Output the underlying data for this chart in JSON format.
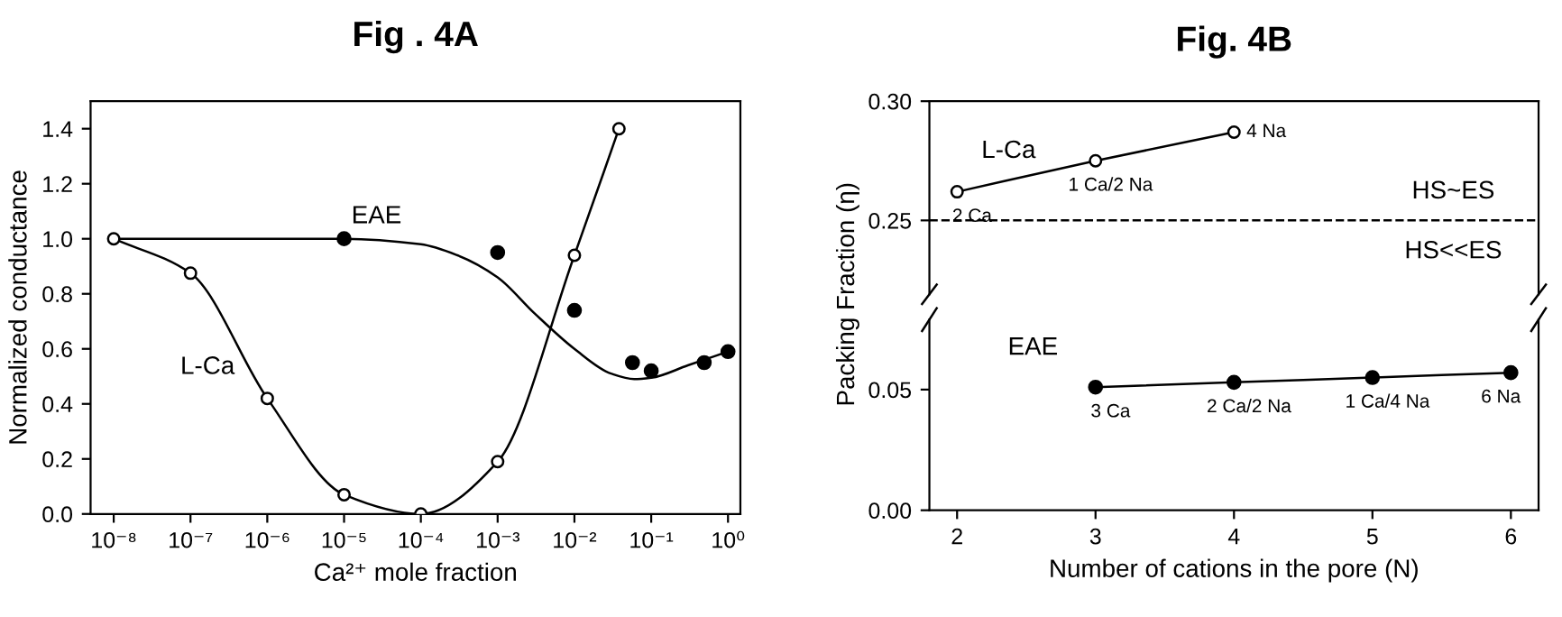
{
  "chart_data": [
    {
      "type": "line",
      "title": "Fig . 4A",
      "xlabel": "Ca²⁺ mole fraction",
      "ylabel": "Normalized conductance",
      "log": "x",
      "xlim": [
        5e-09,
        1.45
      ],
      "ylim": [
        0,
        1.5
      ],
      "xticks": [
        {
          "value": 1e-08,
          "label": "10⁻⁸"
        },
        {
          "value": 1e-07,
          "label": "10⁻⁷"
        },
        {
          "value": 1e-06,
          "label": "10⁻⁶"
        },
        {
          "value": 1e-05,
          "label": "10⁻⁵"
        },
        {
          "value": 0.0001,
          "label": "10⁻⁴"
        },
        {
          "value": 0.001,
          "label": "10⁻³"
        },
        {
          "value": 0.01,
          "label": "10⁻²"
        },
        {
          "value": 0.1,
          "label": "10⁻¹"
        },
        {
          "value": 1,
          "label": "10⁰"
        }
      ],
      "yticks": [
        {
          "value": 0,
          "label": "0.0"
        },
        {
          "value": 0.2,
          "label": "0.2"
        },
        {
          "value": 0.4,
          "label": "0.4"
        },
        {
          "value": 0.6,
          "label": "0.6"
        },
        {
          "value": 0.8,
          "label": "0.8"
        },
        {
          "value": 1,
          "label": "1.0"
        },
        {
          "value": 1.2,
          "label": "1.2"
        },
        {
          "value": 1.4,
          "label": "1.4"
        }
      ],
      "series": [
        {
          "marker": "circle",
          "color": "#000000",
          "x": [
            1e-08,
            1e-07,
            1e-06,
            1e-05,
            0.0001,
            0.001,
            0.01,
            0.038
          ],
          "values": [
            1.0,
            0.875,
            0.42,
            0.07,
            0.0,
            0.19,
            0.94,
            1.4
          ]
        },
        {
          "type": "scatter",
          "marker": "circle",
          "color": "#000000",
          "x": [
            1e-05,
            0.001,
            0.01,
            0.057,
            0.1,
            0.49,
            1
          ],
          "values": [
            1.0,
            0.95,
            0.74,
            0.55,
            0.52,
            0.55,
            0.59
          ]
        },
        {
          "color": "#000000",
          "x": [
            1e-08,
            1e-05,
            0.0001,
            0.0003,
            0.001,
            0.003,
            0.01,
            0.03,
            0.06,
            0.1,
            0.3,
            1
          ],
          "values": [
            1.0,
            1.0,
            0.98,
            0.94,
            0.86,
            0.73,
            0.6,
            0.51,
            0.49,
            0.495,
            0.54,
            0.59
          ]
        }
      ],
      "annotations": [
        "EAE",
        "L-Ca"
      ]
    },
    {
      "type": "line",
      "title": "Fig. 4B",
      "ylabel": "Packing Fraction (η)",
      "tick_labels": "y",
      "xlim": [
        1.8,
        6.2
      ],
      "ylim": [
        0.219,
        0.3
      ],
      "xticks": [
        2,
        3,
        4,
        5,
        6
      ],
      "yticks": [
        {
          "value": 0.25,
          "label": "0.25"
        },
        {
          "value": 0.3,
          "label": "0.30"
        }
      ],
      "series": [
        {
          "marker": "circle",
          "color": "#000000",
          "x": [
            2,
            3,
            4
          ],
          "values": [
            0.262,
            0.275,
            0.287
          ]
        }
      ],
      "ref_lines": [
        {
          "axis": "y",
          "value": 0.25,
          "line_style": "dashed",
          "color": "#000000"
        }
      ],
      "annotations": [
        "L-Ca",
        "HS~ES",
        "HS<<ES",
        {
          "text": "2 Ca",
          "x": 2,
          "y": 0.262
        },
        {
          "text": "1 Ca/2 Na",
          "x": 3,
          "y": 0.275
        },
        {
          "text": "4 Na",
          "x": 4,
          "y": 0.287
        }
      ]
    },
    {
      "type": "scatter",
      "xlabel": "Number of cations in the pore (N)",
      "xlim": [
        1.8,
        6.2
      ],
      "ylim": [
        0,
        0.079
      ],
      "xticks": [
        2,
        3,
        4,
        5,
        6
      ],
      "yticks": [
        {
          "value": 0,
          "label": "0.00"
        },
        {
          "value": 0.05,
          "label": "0.05"
        }
      ],
      "series": [
        {
          "type": "line",
          "color": "#000000",
          "x": [
            3,
            4,
            5,
            6
          ],
          "values": [
            0.051,
            0.053,
            0.055,
            0.057
          ]
        },
        {
          "marker": "circle",
          "color": "#000000",
          "x": [
            3,
            4,
            5,
            6
          ],
          "values": [
            0.051,
            0.053,
            0.055,
            0.057
          ]
        }
      ],
      "annotations": [
        "EAE",
        {
          "text": "3 Ca",
          "x": 3,
          "y": 0.051
        },
        {
          "text": "2 Ca/2 Na",
          "x": 4,
          "y": 0.053
        },
        {
          "text": "1 Ca/4 Na",
          "x": 5,
          "y": 0.055
        },
        {
          "text": "6 Na",
          "x": 6,
          "y": 0.057
        }
      ]
    }
  ]
}
